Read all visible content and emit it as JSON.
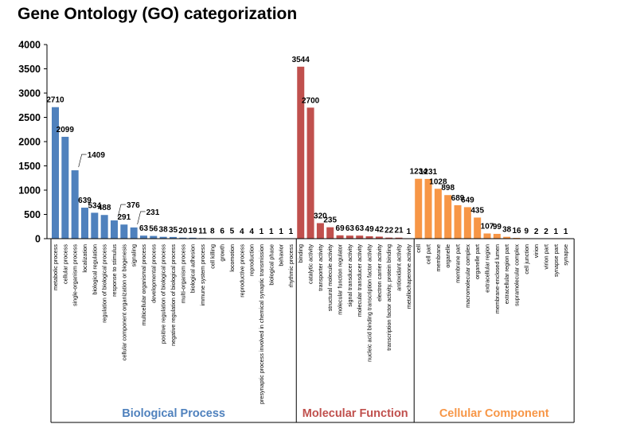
{
  "chart_data": {
    "type": "bar",
    "title": "Gene Ontology (GO) categorization",
    "xlabel": "",
    "ylabel": "",
    "ylim": [
      0,
      4000
    ],
    "yticks": [
      0,
      500,
      1000,
      1500,
      2000,
      2500,
      3000,
      3500,
      4000
    ],
    "grid": false,
    "groups": [
      {
        "name": "Biological Process",
        "color": "#4f81bd",
        "categories": [
          "metabolic process",
          "cellular process",
          "single-organism process",
          "localization",
          "biological regulation",
          "regulation of biological process",
          "response to stimulus",
          "cellular component organization or biogenesis",
          "signaling",
          "multicellular organismal process",
          "developmental process",
          "positive regulation of biological process",
          "negative regulation of biological process",
          "multi-organism process",
          "biological adhesion",
          "immune system process",
          "cell killing",
          "growth",
          "locomotion",
          "reproductive process",
          "reproduction",
          "presynaptic process involved in chemical synaptic transmission",
          "biological phase",
          "behavior",
          "rhythmic process"
        ],
        "values": [
          2710,
          2099,
          1409,
          639,
          534,
          488,
          376,
          291,
          231,
          63,
          56,
          38,
          35,
          20,
          19,
          11,
          8,
          6,
          5,
          4,
          4,
          1,
          1,
          1,
          1
        ]
      },
      {
        "name": "Molecular Function",
        "color": "#c0504d",
        "categories": [
          "binding",
          "catalytic activity",
          "transporter activity",
          "structural molecule activity",
          "molecular function regulator",
          "signal transducer activity",
          "molecular transducer activity",
          "nucleic acid binding transcription factor activity",
          "electron carrier activity",
          "transcription factor activity, protein binding",
          "antioxidant activity",
          "metallochaperone activity"
        ],
        "values": [
          3544,
          2700,
          320,
          235,
          69,
          63,
          63,
          49,
          42,
          22,
          21,
          1
        ]
      },
      {
        "name": "Cellular Component",
        "color": "#f79646",
        "categories": [
          "cell",
          "cell part",
          "membrane",
          "organelle",
          "membrane part",
          "macromolecular complex",
          "organelle part",
          "extracellular region",
          "membrane-enclosed lumen",
          "extracellular region part",
          "supramolecular complex",
          "cell junction",
          "virion",
          "virion part",
          "synapse part",
          "synapse"
        ],
        "values": [
          1234,
          1231,
          1028,
          898,
          689,
          649,
          435,
          107,
          99,
          38,
          16,
          9,
          2,
          2,
          1,
          1
        ]
      }
    ]
  }
}
